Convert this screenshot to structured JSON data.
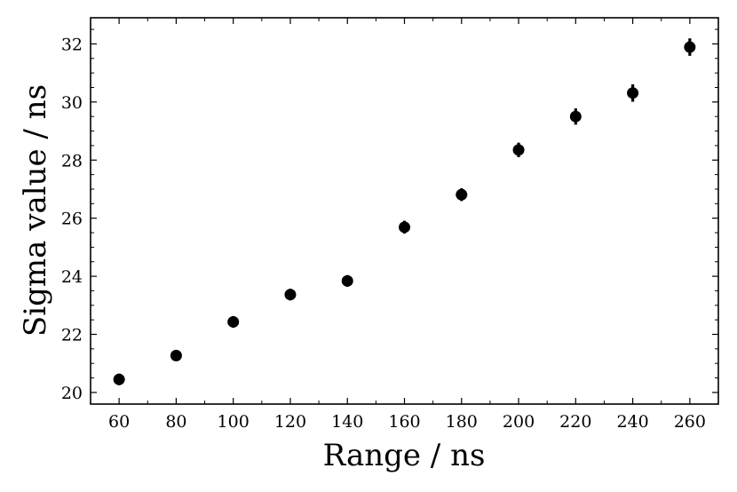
{
  "chart_data": {
    "type": "scatter",
    "xlabel": "Range / ns",
    "ylabel": "Sigma value / ns",
    "xlim": [
      50,
      270
    ],
    "ylim": [
      19.6,
      32.9
    ],
    "x_ticks": [
      60,
      80,
      100,
      120,
      140,
      160,
      180,
      200,
      220,
      240,
      260
    ],
    "x_tick_labels": [
      "60",
      "80",
      "100",
      "120",
      "140",
      "160",
      "180",
      "200",
      "220",
      "240",
      "260"
    ],
    "y_ticks": [
      20,
      22,
      24,
      26,
      28,
      30,
      32
    ],
    "y_tick_labels": [
      "20",
      "22",
      "24",
      "26",
      "28",
      "30",
      "32"
    ],
    "grid": false,
    "legend": "none",
    "marker_color": "#000000",
    "series": [
      {
        "x": [
          60,
          80,
          100,
          120,
          140,
          160,
          180,
          200,
          220,
          240,
          260
        ],
        "y": [
          20.45,
          21.27,
          22.43,
          23.37,
          23.84,
          25.69,
          26.81,
          28.35,
          29.5,
          30.31,
          31.89
        ],
        "yerr": [
          0.2,
          0.18,
          0.2,
          0.2,
          0.2,
          0.22,
          0.22,
          0.25,
          0.28,
          0.3,
          0.3
        ]
      }
    ]
  }
}
